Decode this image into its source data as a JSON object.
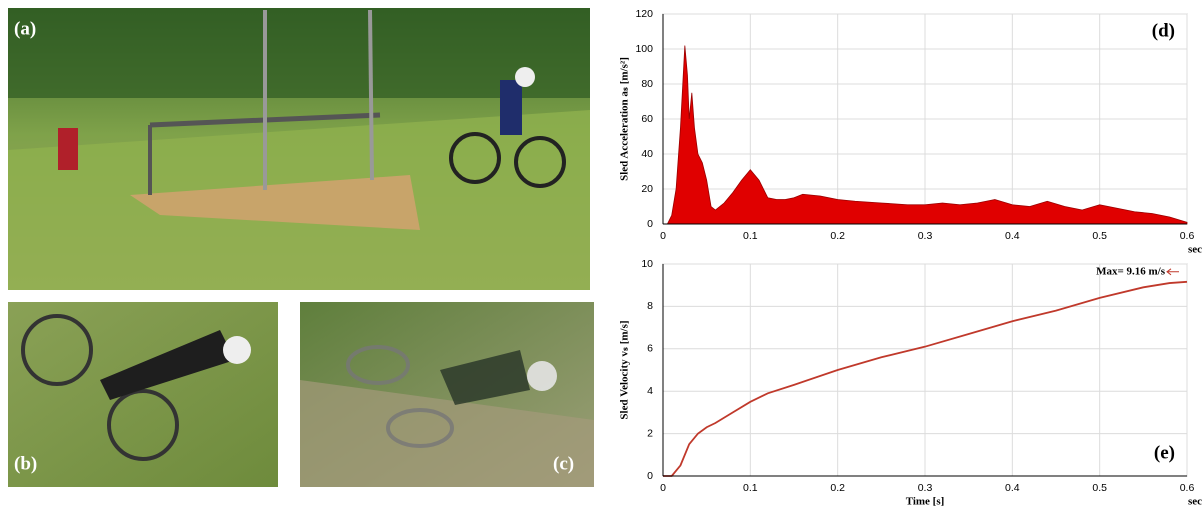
{
  "figure": {
    "panels": [
      {
        "label": "(a)"
      },
      {
        "label": "(b)"
      },
      {
        "label": "(c)"
      }
    ]
  },
  "chart_data": [
    {
      "type": "area",
      "panel_label": "(d)",
      "ylabel": "Sled Acceleration aₛ [m/s²]",
      "xlabel": "sec",
      "color": "#e00000",
      "grid": true,
      "x": [
        0,
        0.005,
        0.01,
        0.015,
        0.02,
        0.025,
        0.028,
        0.03,
        0.033,
        0.036,
        0.04,
        0.045,
        0.05,
        0.055,
        0.06,
        0.07,
        0.08,
        0.09,
        0.1,
        0.11,
        0.12,
        0.13,
        0.14,
        0.15,
        0.16,
        0.18,
        0.2,
        0.22,
        0.25,
        0.28,
        0.3,
        0.32,
        0.34,
        0.36,
        0.38,
        0.4,
        0.42,
        0.44,
        0.46,
        0.48,
        0.5,
        0.52,
        0.54,
        0.56,
        0.58,
        0.6
      ],
      "values": [
        0,
        0,
        5,
        20,
        55,
        102,
        85,
        60,
        75,
        55,
        40,
        35,
        25,
        10,
        8,
        12,
        18,
        25,
        31,
        25,
        15,
        14,
        14,
        15,
        17,
        16,
        14,
        13,
        12,
        11,
        11,
        12,
        11,
        12,
        14,
        11,
        10,
        13,
        10,
        8,
        11,
        9,
        7,
        6,
        4,
        1
      ],
      "xlim": [
        0,
        0.6
      ],
      "ylim": [
        0,
        120
      ],
      "xticks": [
        0,
        0.1,
        0.2,
        0.3,
        0.4,
        0.5,
        0.6
      ],
      "yticks": [
        0,
        20,
        40,
        60,
        80,
        100,
        120
      ]
    },
    {
      "type": "line",
      "panel_label": "(e)",
      "ylabel": "Sled Velocity vₛ [m/s]",
      "xlabel": "Time [s]",
      "xunit": "sec",
      "annotation": "Max= 9.16 m/s",
      "color": "#c0392b",
      "grid": true,
      "x": [
        0,
        0.01,
        0.02,
        0.03,
        0.04,
        0.05,
        0.06,
        0.08,
        0.1,
        0.12,
        0.15,
        0.2,
        0.25,
        0.3,
        0.35,
        0.4,
        0.45,
        0.5,
        0.55,
        0.58,
        0.6
      ],
      "values": [
        0,
        0,
        0.5,
        1.5,
        2,
        2.3,
        2.5,
        3,
        3.5,
        3.9,
        4.3,
        5,
        5.6,
        6.1,
        6.7,
        7.3,
        7.8,
        8.4,
        8.9,
        9.1,
        9.16
      ],
      "xlim": [
        0,
        0.6
      ],
      "ylim": [
        0,
        10
      ],
      "xticks": [
        0,
        0.1,
        0.2,
        0.3,
        0.4,
        0.5,
        0.6
      ],
      "yticks": [
        0,
        2,
        4,
        6,
        8,
        10
      ]
    }
  ]
}
